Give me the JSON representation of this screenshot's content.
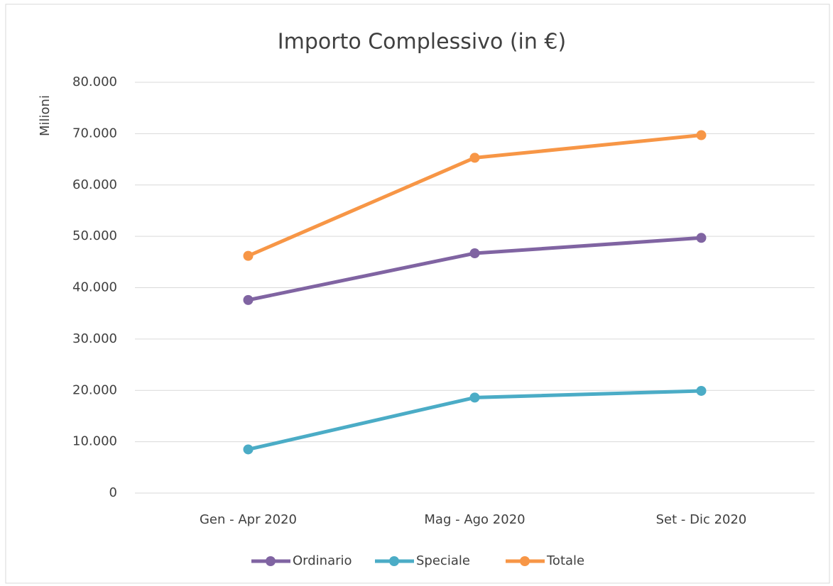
{
  "chart_data": {
    "type": "line",
    "title": "Importo Complessivo (in €)",
    "y_label": "Milioni",
    "categories": [
      "Gen - Apr 2020",
      "Mag - Ago 2020",
      "Set - Dic 2020"
    ],
    "series": [
      {
        "name": "Ordinario",
        "color": "#8064a2",
        "values": [
          37600,
          46700,
          49700
        ]
      },
      {
        "name": "Speciale",
        "color": "#4bacc6",
        "values": [
          8500,
          18600,
          19900
        ]
      },
      {
        "name": "Totale",
        "color": "#f79646",
        "values": [
          46200,
          65300,
          69700
        ]
      }
    ],
    "ylim": [
      0,
      80000
    ],
    "yticks": [
      0,
      {
        "value": 10000,
        "label": "10.000"
      },
      {
        "value": 20000,
        "label": "20.000"
      },
      {
        "value": 30000,
        "label": "30.000"
      },
      {
        "value": 40000,
        "label": "40.000"
      },
      {
        "value": 50000,
        "label": "50.000"
      },
      {
        "value": 60000,
        "label": "60.000"
      },
      {
        "value": 70000,
        "label": "70.000"
      },
      {
        "value": 80000,
        "label": "80.000"
      }
    ],
    "grid": true,
    "legend": "bottom"
  }
}
